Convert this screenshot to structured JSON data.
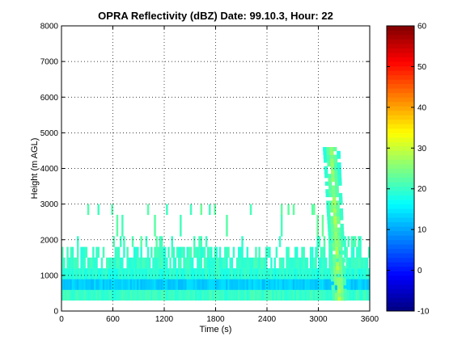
{
  "chart_data": [
    {
      "type": "heatmap",
      "title": "OPRA Reflectivity (dBZ)  Date: 99.10.3, Hour: 22",
      "xlabel": "Time (s)",
      "ylabel": "Height (m AGL)",
      "xlim": [
        0,
        3600
      ],
      "ylim": [
        0,
        8000
      ],
      "xticks": [
        "0",
        "600",
        "1200",
        "1800",
        "2400",
        "3000",
        "3600"
      ],
      "yticks": [
        "0",
        "1000",
        "2000",
        "3000",
        "4000",
        "5000",
        "6000",
        "7000",
        "8000"
      ],
      "grid": true,
      "colormap": "jet",
      "colorbar": {
        "range": [
          -10,
          60
        ],
        "ticks": [
          "-10",
          "0",
          "10",
          "20",
          "30",
          "40",
          "50",
          "60"
        ]
      },
      "layers": [
        {
          "y": [
            300,
            600
          ],
          "x": [
            0,
            3600
          ],
          "dbz": 20
        },
        {
          "y": [
            600,
            900
          ],
          "x": [
            0,
            3600
          ],
          "dbz": 13
        },
        {
          "y": [
            900,
            1200
          ],
          "x": [
            0,
            3600
          ],
          "dbz": 19
        },
        {
          "y": [
            1200,
            1500
          ],
          "x": [
            0,
            3600
          ],
          "dbz": 20,
          "coverage": 0.85
        },
        {
          "y": [
            1500,
            1800
          ],
          "x": [
            0,
            3600
          ],
          "dbz": 20,
          "coverage": 0.45
        },
        {
          "y": [
            1800,
            2100
          ],
          "x": [
            0,
            3500
          ],
          "dbz": 21,
          "coverage": 0.12
        },
        {
          "y": [
            2100,
            2700
          ],
          "x": [
            0,
            3200
          ],
          "dbz": 22,
          "coverage": 0.06
        },
        {
          "y": [
            2700,
            3000
          ],
          "x": [
            0,
            3000
          ],
          "dbz": 22,
          "coverage": 0.08
        }
      ],
      "convective_band": {
        "time_top": [
          3050,
          3250
        ],
        "time_bottom": [
          3160,
          3330
        ],
        "height_top": 4600,
        "height_bottom": 300,
        "dbz_max": 30
      }
    }
  ]
}
